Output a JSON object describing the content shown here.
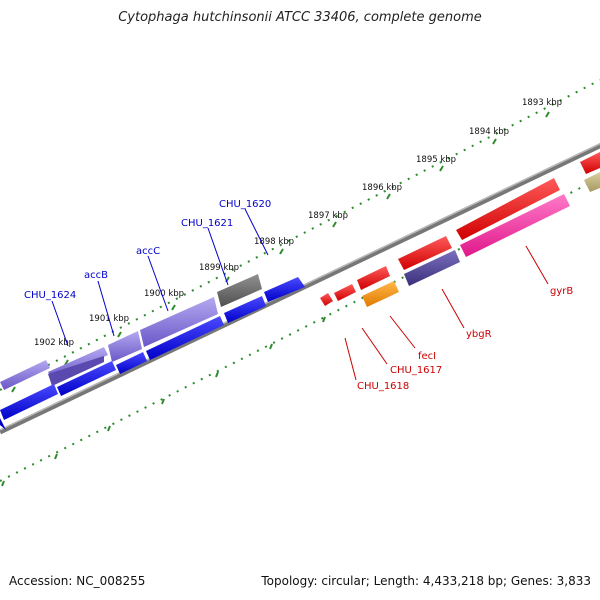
{
  "title": "Cytophaga hutchinsonii ATCC 33406, complete genome",
  "footer": {
    "accession": "Accession: NC_008255",
    "info": "Topology: circular; Length: 4,433,218 bp; Genes: 3,833"
  },
  "colors": {
    "backbone": "#7f7f7f",
    "ticks": "#2e8b2e",
    "forward_label": "#0000cc",
    "reverse_label": "#cc0000"
  },
  "scale_labels": [
    "1893 kbp",
    "1894 kbp",
    "1895 kbp",
    "1896 kbp",
    "1897 kbp",
    "1898 kbp",
    "1899 kbp",
    "1900 kbp",
    "1901 kbp",
    "1902 kbp"
  ],
  "gene_labels": {
    "forward": [
      "CHU_1624",
      "accB",
      "accC",
      "CHU_1621",
      "CHU_1620"
    ],
    "reverse": [
      "gyrB",
      "ybgR",
      "fecI",
      "CHU_1617",
      "CHU_1618"
    ]
  }
}
